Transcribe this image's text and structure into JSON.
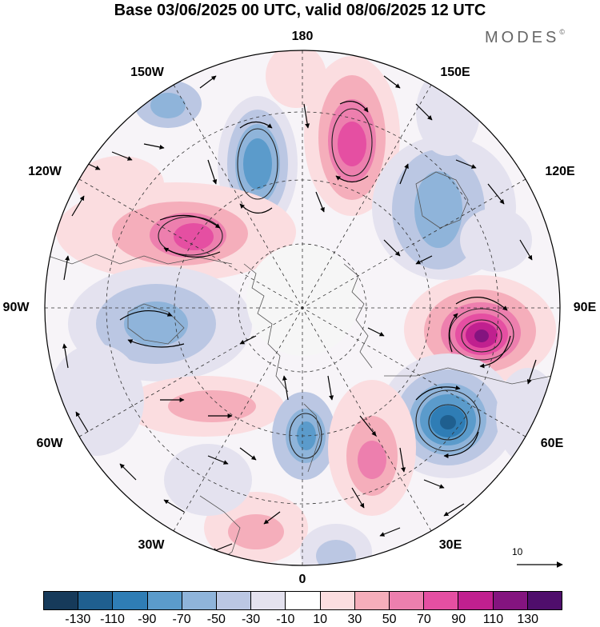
{
  "title": "Base 03/06/2025 00 UTC, valid 08/06/2025 12 UTC",
  "brand": "MODES",
  "brand_mark": "©",
  "longitude_labels": {
    "lon_180": "180",
    "lon_150e": "150E",
    "lon_120e": "120E",
    "lon_90e": "90E",
    "lon_60e": "60E",
    "lon_30e": "30E",
    "lon_0": "0",
    "lon_30w": "30W",
    "lon_60w": "60W",
    "lon_90w": "90W",
    "lon_120w": "120W",
    "lon_150w": "150W"
  },
  "reference_vector_label": "10",
  "colorbar": {
    "tick_labels": [
      "-130",
      "-110",
      "-90",
      "-70",
      "-50",
      "-30",
      "-10",
      "10",
      "30",
      "50",
      "70",
      "90",
      "110",
      "130"
    ],
    "colors": [
      "#163a5a",
      "#1f5f8f",
      "#2f7db5",
      "#5b9bcb",
      "#8fb4da",
      "#bbc7e3",
      "#e4e2ef",
      "#ffffff",
      "#fbdde0",
      "#f5aebb",
      "#ed7fae",
      "#e54fa2",
      "#c0208f",
      "#84147f",
      "#4f0e6c"
    ]
  },
  "anomaly_centers": [
    {
      "sign": "positive",
      "value": 110,
      "lon": "90E"
    },
    {
      "sign": "negative",
      "value": -110,
      "lon": "60E"
    },
    {
      "sign": "positive",
      "value": 70,
      "lon": "165E"
    },
    {
      "sign": "negative",
      "value": -70,
      "lon": "165W"
    },
    {
      "sign": "positive",
      "value": 90,
      "lon": "120W"
    },
    {
      "sign": "negative",
      "value": -50,
      "lon": "125E"
    },
    {
      "sign": "negative",
      "value": -50,
      "lon": "90W"
    },
    {
      "sign": "negative",
      "value": -70,
      "lon": "15E"
    },
    {
      "sign": "positive",
      "value": 60,
      "lon": "30E"
    }
  ]
}
